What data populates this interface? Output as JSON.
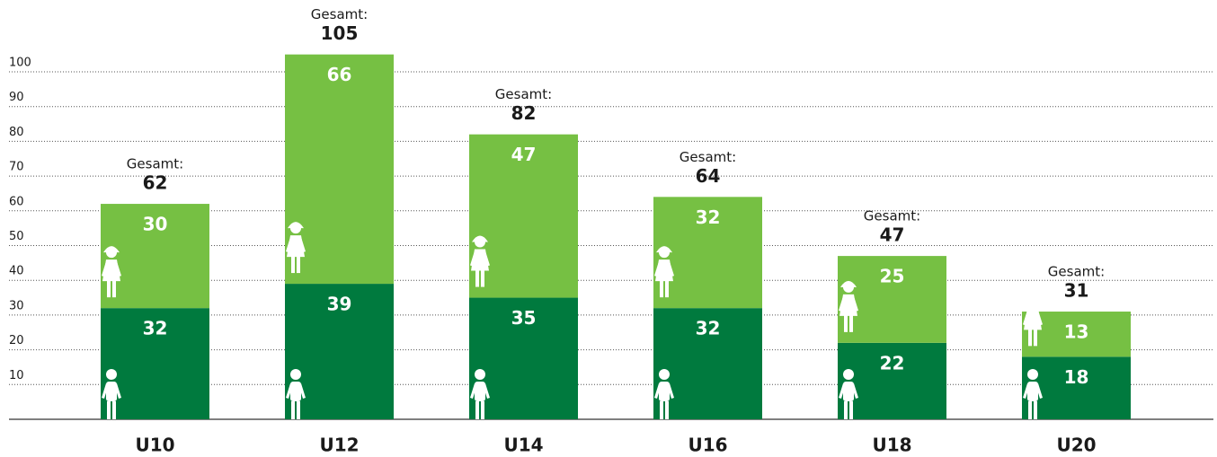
{
  "chart_data": {
    "type": "stacked-bar",
    "categories": [
      "U10",
      "U12",
      "U14",
      "U16",
      "U18",
      "U20"
    ],
    "series": [
      {
        "color": "#007a3e",
        "values": [
          32,
          39,
          35,
          32,
          22,
          18
        ]
      },
      {
        "color": "#76c043",
        "values": [
          30,
          66,
          47,
          32,
          25,
          13
        ]
      }
    ],
    "total_label": "Gesamt:",
    "totals": [
      62,
      105,
      82,
      64,
      47,
      31
    ],
    "ylim": [
      0,
      100
    ],
    "yticks": [
      10,
      20,
      30,
      40,
      50,
      60,
      70,
      80,
      90,
      100
    ],
    "grid": true
  }
}
